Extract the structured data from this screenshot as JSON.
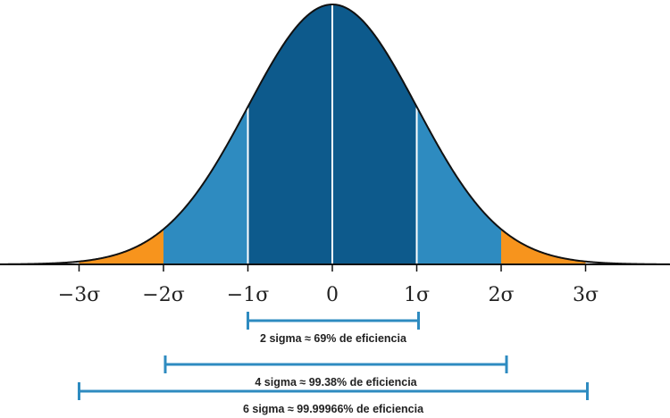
{
  "chart_data": {
    "type": "area",
    "title": "",
    "xlabel": "",
    "ylabel": "",
    "xlim": [
      -3.9,
      4.0
    ],
    "ylim": [
      0,
      0.4
    ],
    "grid": false,
    "mean": 0,
    "sd": 1,
    "tick_values": [
      -3,
      -2,
      -1,
      0,
      1,
      2,
      3
    ],
    "tick_labels": [
      "−3σ",
      "−2σ",
      "−1σ",
      "0",
      "1σ",
      "2σ",
      "3σ"
    ],
    "bands": [
      {
        "name": "tail-left",
        "from": -3,
        "to": -2,
        "color": "#f7941d"
      },
      {
        "name": "outer-left",
        "from": -2,
        "to": -1,
        "color": "#2e8bc0"
      },
      {
        "name": "inner-left",
        "from": -1,
        "to": 0,
        "color": "#0d5a8c"
      },
      {
        "name": "inner-right",
        "from": 0,
        "to": 1,
        "color": "#0d5a8c"
      },
      {
        "name": "outer-right",
        "from": 1,
        "to": 2,
        "color": "#2e8bc0"
      },
      {
        "name": "tail-right",
        "from": 2,
        "to": 3,
        "color": "#f7941d"
      }
    ],
    "dividers": [
      -1,
      0,
      1
    ],
    "ranges": [
      {
        "from": -1,
        "to": 1,
        "label": "2 sigma ≈ 69% de eficiencia"
      },
      {
        "from": -2,
        "to": 2,
        "label": "4 sigma ≈ 99.38% de eficiencia"
      },
      {
        "from": -3,
        "to": 3,
        "label": "6 sigma ≈ 99.99966% de eficiencia"
      }
    ],
    "colors": {
      "curve": "#111111",
      "axis": "#111111",
      "divider": "#ffffff",
      "range_bar": "#2e8bc0"
    }
  }
}
